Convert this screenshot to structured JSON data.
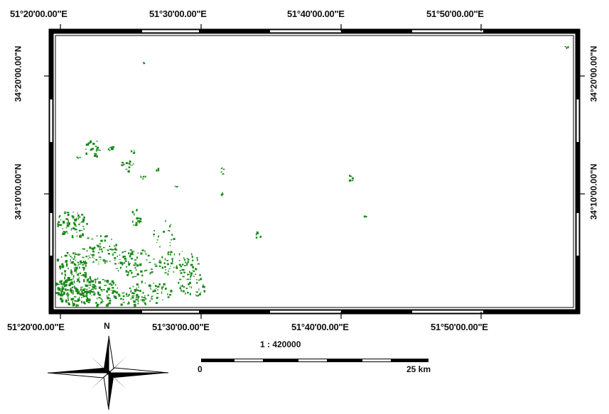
{
  "map": {
    "top_lon_labels": [
      "51°20'00.00\"E",
      "51°30'00.00\"E",
      "51°40'00.00\"E",
      "51°50'00.00\"E"
    ],
    "bottom_lon_labels": [
      "51°20'00.00\"E",
      "51°30'00.00\"E",
      "51°40'00.00\"E",
      "51°50'00.00\"E"
    ],
    "left_lat_labels": [
      "34°20'00.00\"N",
      "34°10'00.00\"N"
    ],
    "right_lat_labels": [
      "34°20'00.00\"N",
      "34°10'00.00\"N"
    ],
    "feature_color": "#1a8a1a",
    "frame_color": "#000000"
  },
  "scale_bar": {
    "ratio": "1 : 420000",
    "start_label": "0",
    "end_label": "25 km"
  },
  "north_arrow": {
    "icon": "compass-rose-icon",
    "label": "N"
  }
}
